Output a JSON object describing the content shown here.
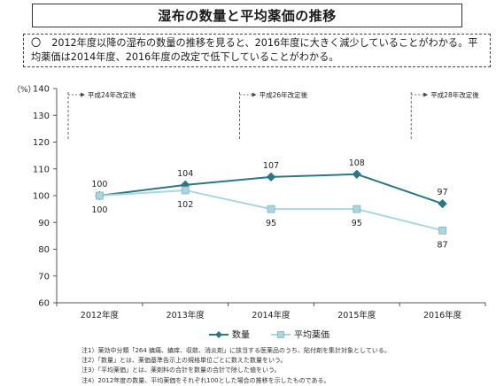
{
  "header": {
    "title": "湿布の数量と平均薬価の推移",
    "summary_mark": "〇",
    "summary": "2012年度以降の湿布の数量の推移を見ると、2016年度に大きく減少していることがわかる。平均薬価は2014年度、2016年度の改定で低下していることがわかる。"
  },
  "chart_data": {
    "type": "line",
    "title": "",
    "xlabel": "",
    "ylabel": "（%）",
    "ylim": [
      60,
      140
    ],
    "yticks": [
      60,
      70,
      80,
      90,
      100,
      110,
      120,
      130,
      140
    ],
    "grid": false,
    "legend_position": "bottom-center",
    "categories": [
      "2012年度",
      "2013年度",
      "2014年度",
      "2015年度",
      "2016年度"
    ],
    "series": [
      {
        "name": "数量",
        "values": [
          100,
          104,
          107,
          108,
          97
        ],
        "color": "#2a7886",
        "marker": "diamond",
        "label_position": "above"
      },
      {
        "name": "平均薬価",
        "values": [
          100,
          102,
          95,
          95,
          87
        ],
        "color": "#a9d6e0",
        "marker": "square",
        "label_position": "below"
      }
    ],
    "annotations": [
      {
        "text": "平成24年改定後",
        "at_category": 0
      },
      {
        "text": "平成26年改定後",
        "at_category": 2
      },
      {
        "text": "平成28年改定後",
        "at_category": 4
      }
    ]
  },
  "notes": [
    "注1）薬効中分類「264 鎮痛、鎮痒、収斂、消炎剤」に該当する医薬品のうち、貼付剤を集計対象としている。",
    "注2）「数量」とは、薬価基準告示上の規格単位ごとに数えた数量をいう。",
    "注3）「平均薬価」とは、薬剤料の合計を数量の合計で除した値をいう。",
    "注4）2012年度の数量、平均薬価をそれぞれ100とした場合の推移を示したものである。"
  ]
}
